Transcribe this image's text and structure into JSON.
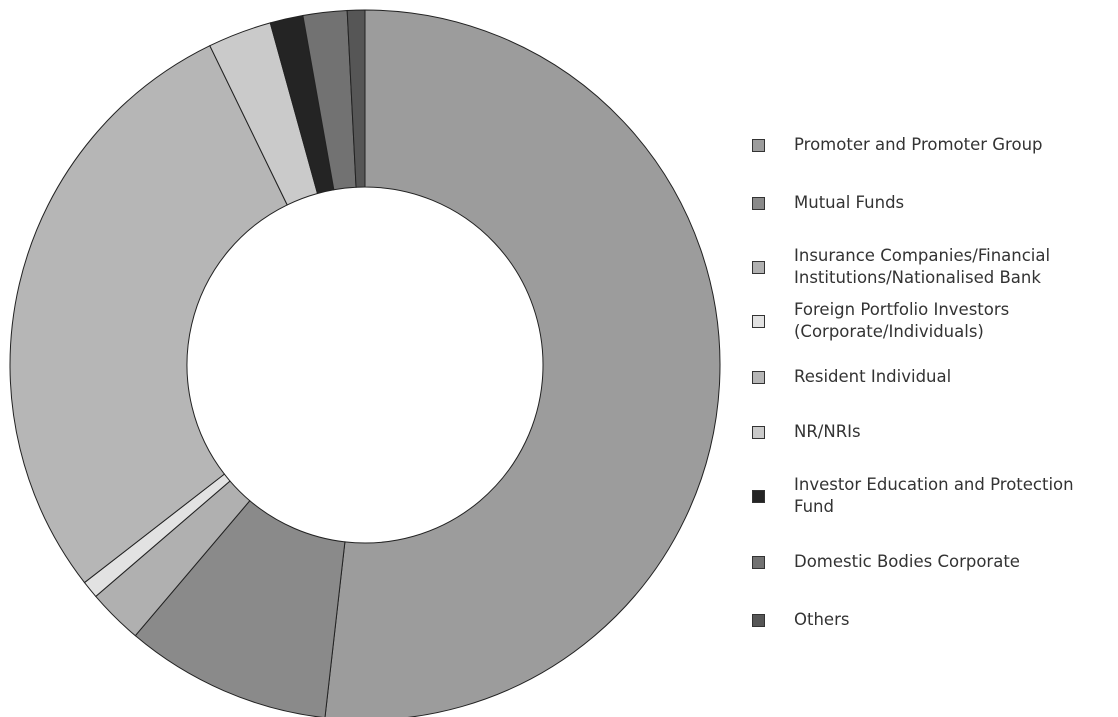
{
  "chart_data": {
    "type": "donut",
    "series": [
      {
        "name": "Promoter and Promoter Group",
        "color": "#9c9c9c",
        "value": 51.8
      },
      {
        "name": "Mutual Funds",
        "color": "#8a8a8a",
        "value": 9.4
      },
      {
        "name": "Insurance Companies/Financial Institutions/Nationalised Bank",
        "color": "#b0b0b0",
        "value": 2.5
      },
      {
        "name": "Foreign Portfolio Investors (Corporate/Individuals)",
        "color": "#e2e2e2",
        "value": 0.8
      },
      {
        "name": "Resident Individual",
        "color": "#b6b6b6",
        "value": 28.3
      },
      {
        "name": "NR/NRIs",
        "color": "#cacaca",
        "value": 2.9
      },
      {
        "name": "Investor Education and Protection Fund",
        "color": "#242424",
        "value": 1.5
      },
      {
        "name": "Domestic Bodies Corporate",
        "color": "#727272",
        "value": 2.0
      },
      {
        "name": "Others",
        "color": "#565656",
        "value": 0.8
      }
    ]
  }
}
